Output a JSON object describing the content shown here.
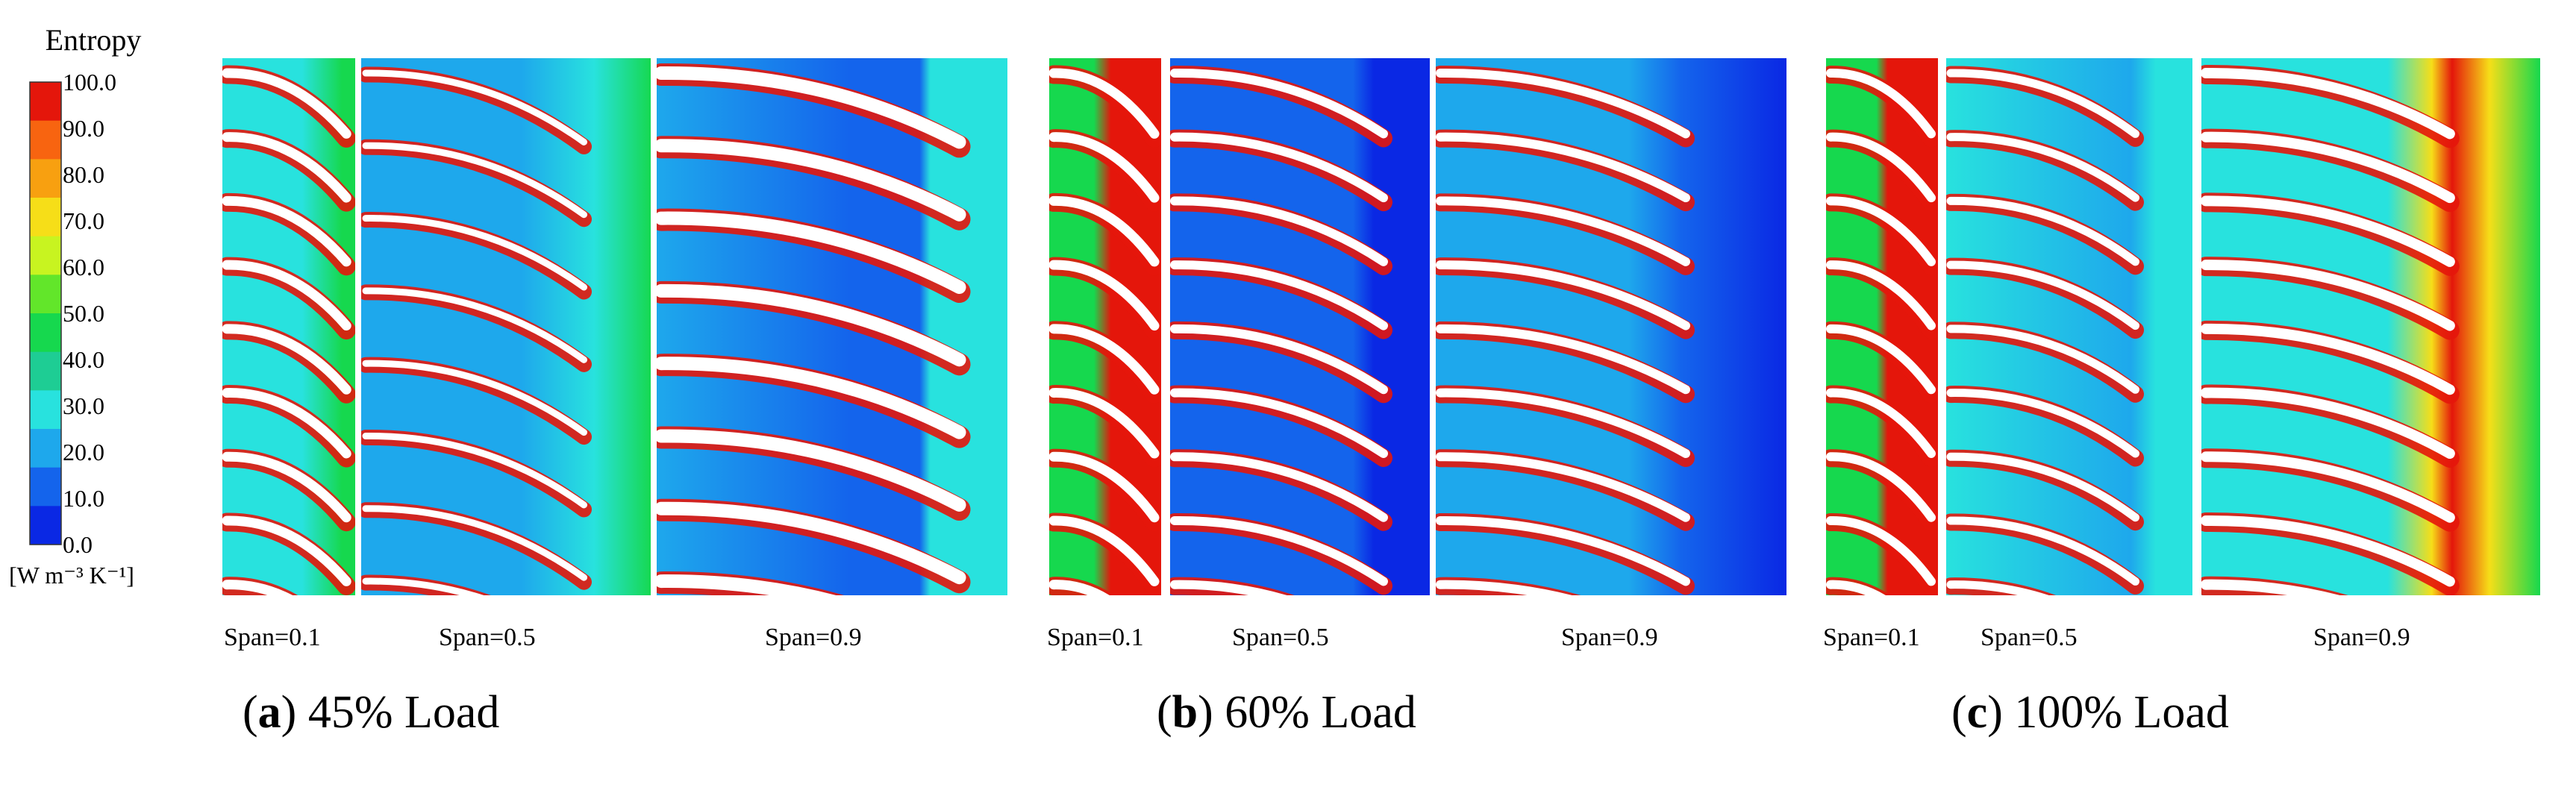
{
  "colorbar": {
    "title": "Entropy",
    "unit": "[W m⁻³ K⁻¹]",
    "ticks": [
      "100.0",
      "90.0",
      "80.0",
      "70.0",
      "60.0",
      "50.0",
      "40.0",
      "30.0",
      "20.0",
      "10.0",
      "0.0"
    ],
    "colors": [
      "#e4160b",
      "#f86410",
      "#f8a010",
      "#f6de18",
      "#c8f420",
      "#62e62a",
      "#16d84e",
      "#1ecd94",
      "#28e2de",
      "#1ea8ec",
      "#1464ec",
      "#0a28e4"
    ]
  },
  "panels": [
    {
      "letter": "a",
      "caption": "45% Load",
      "spans": [
        "Span=0.1",
        "Span=0.5",
        "Span=0.9"
      ]
    },
    {
      "letter": "b",
      "caption": "60% Load",
      "spans": [
        "Span=0.1",
        "Span=0.5",
        "Span=0.9"
      ]
    },
    {
      "letter": "c",
      "caption": "100% Load",
      "spans": [
        "Span=0.1",
        "Span=0.5",
        "Span=0.9"
      ]
    }
  ],
  "field_colors": {
    "red": "#e4160b",
    "yellow": "#f6de18",
    "green": "#16d84e",
    "cyan": "#28e2de",
    "lightblue": "#1ea8ec",
    "blue": "#1464ec",
    "deepblue": "#0a28e4"
  }
}
